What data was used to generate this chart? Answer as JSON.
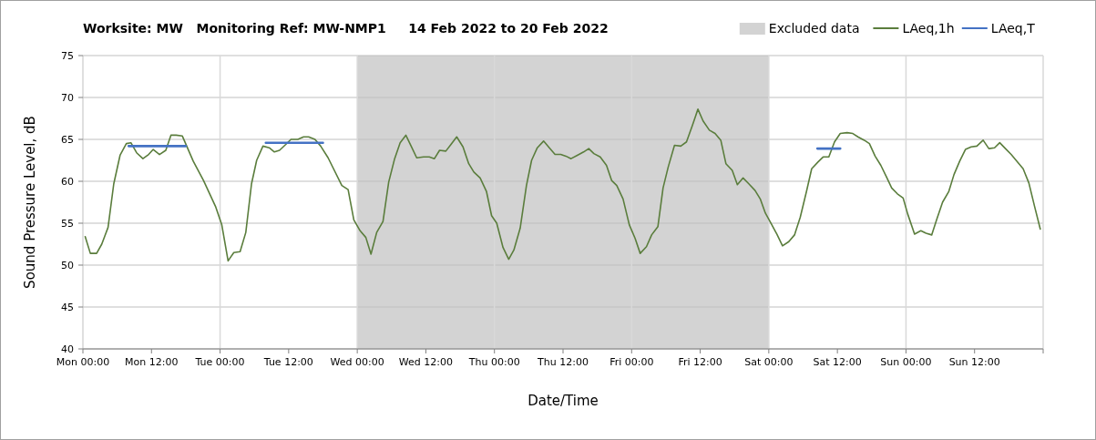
{
  "chart_data": {
    "type": "line",
    "title": "Worksite: MW   Monitoring Ref: MW-NMP1     14 Feb 2022 to 20 Feb 2022",
    "xlabel": "Date/Time",
    "ylabel": "Sound Pressure Level, dB",
    "xlim": [
      "2022-02-14T00:00",
      "2022-02-21T00:00"
    ],
    "ylim": [
      40,
      75
    ],
    "yticks": [
      40,
      45,
      50,
      55,
      60,
      65,
      70,
      75
    ],
    "xticks": [
      {
        "value": "2022-02-14T00:00",
        "label": "Mon 00:00"
      },
      {
        "value": "2022-02-14T12:00",
        "label": "Mon 12:00"
      },
      {
        "value": "2022-02-15T00:00",
        "label": "Tue 00:00"
      },
      {
        "value": "2022-02-15T12:00",
        "label": "Tue 12:00"
      },
      {
        "value": "2022-02-16T00:00",
        "label": "Wed 00:00"
      },
      {
        "value": "2022-02-16T12:00",
        "label": "Wed 12:00"
      },
      {
        "value": "2022-02-17T00:00",
        "label": "Thu 00:00"
      },
      {
        "value": "2022-02-17T12:00",
        "label": "Thu 12:00"
      },
      {
        "value": "2022-02-18T00:00",
        "label": "Fri 00:00"
      },
      {
        "value": "2022-02-18T12:00",
        "label": "Fri 12:00"
      },
      {
        "value": "2022-02-19T00:00",
        "label": "Sat 00:00"
      },
      {
        "value": "2022-02-19T12:00",
        "label": "Sat 12:00"
      },
      {
        "value": "2022-02-20T00:00",
        "label": "Sun 00:00"
      },
      {
        "value": "2022-02-20T12:00",
        "label": "Sun 12:00"
      },
      {
        "value": "2022-02-21T00:00",
        "label": null
      }
    ],
    "grid": true,
    "legend": "top right",
    "marker": "none",
    "line_style": "solid",
    "bands": [
      {
        "axis": "x",
        "from": "2022-02-16T00:00",
        "to": "2022-02-19T00:00",
        "label": "Excluded data",
        "color": "#d3d3d3"
      }
    ],
    "series": [
      {
        "name": "LAeq,1h",
        "color": "#5a7d3c",
        "x": [
          "2022-02-14T00:24",
          "2022-02-14T01:18",
          "2022-02-14T02:24",
          "2022-02-14T03:18",
          "2022-02-14T04:24",
          "2022-02-14T05:24",
          "2022-02-14T06:30",
          "2022-02-14T07:36",
          "2022-02-14T08:24",
          "2022-02-14T09:24",
          "2022-02-14T10:30",
          "2022-02-14T11:30",
          "2022-02-14T12:18",
          "2022-02-14T13:24",
          "2022-02-14T14:30",
          "2022-02-14T15:24",
          "2022-02-14T16:18",
          "2022-02-14T17:24",
          "2022-02-14T19:18",
          "2022-02-14T21:06",
          "2022-02-14T23:12",
          "2022-02-15T00:18",
          "2022-02-15T01:24",
          "2022-02-15T02:24",
          "2022-02-15T03:30",
          "2022-02-15T04:30",
          "2022-02-15T05:30",
          "2022-02-15T06:24",
          "2022-02-15T07:30",
          "2022-02-15T08:36",
          "2022-02-15T09:30",
          "2022-02-15T10:24",
          "2022-02-15T11:30",
          "2022-02-15T12:24",
          "2022-02-15T13:36",
          "2022-02-15T14:36",
          "2022-02-15T15:30",
          "2022-02-15T16:36",
          "2022-02-15T17:36",
          "2022-02-15T18:54",
          "2022-02-15T21:18",
          "2022-02-15T22:24",
          "2022-02-15T23:24",
          "2022-02-16T00:30",
          "2022-02-16T01:30",
          "2022-02-16T02:24",
          "2022-02-16T03:24",
          "2022-02-16T04:30",
          "2022-02-16T05:30",
          "2022-02-16T06:30",
          "2022-02-16T07:30",
          "2022-02-16T08:30",
          "2022-02-16T09:30",
          "2022-02-16T10:24",
          "2022-02-16T11:36",
          "2022-02-16T12:36",
          "2022-02-16T13:30",
          "2022-02-16T14:24",
          "2022-02-16T15:30",
          "2022-02-16T16:24",
          "2022-02-16T17:24",
          "2022-02-16T18:30",
          "2022-02-16T19:30",
          "2022-02-16T20:24",
          "2022-02-16T21:30",
          "2022-02-16T22:36",
          "2022-02-16T23:30",
          "2022-02-17T00:24",
          "2022-02-17T01:30",
          "2022-02-17T02:30",
          "2022-02-17T03:24",
          "2022-02-17T04:30",
          "2022-02-17T05:36",
          "2022-02-17T06:30",
          "2022-02-17T07:30",
          "2022-02-17T08:36",
          "2022-02-17T09:36",
          "2022-02-17T10:36",
          "2022-02-17T11:36",
          "2022-02-17T12:30",
          "2022-02-17T13:24",
          "2022-02-17T14:30",
          "2022-02-17T15:36",
          "2022-02-17T16:30",
          "2022-02-17T17:24",
          "2022-02-17T18:30",
          "2022-02-17T19:36",
          "2022-02-17T20:30",
          "2022-02-17T21:24",
          "2022-02-17T22:30",
          "2022-02-17T23:36",
          "2022-02-18T00:36",
          "2022-02-18T01:30",
          "2022-02-18T02:36",
          "2022-02-18T03:30",
          "2022-02-18T04:36",
          "2022-02-18T05:30",
          "2022-02-18T06:24",
          "2022-02-18T07:30",
          "2022-02-18T08:36",
          "2022-02-18T09:36",
          "2022-02-18T10:36",
          "2022-02-18T11:36",
          "2022-02-18T12:30",
          "2022-02-18T13:36",
          "2022-02-18T14:36",
          "2022-02-18T15:36",
          "2022-02-18T16:30",
          "2022-02-18T17:36",
          "2022-02-18T18:30",
          "2022-02-18T19:30",
          "2022-02-18T20:30",
          "2022-02-18T21:36",
          "2022-02-18T22:30",
          "2022-02-18T23:24",
          "2022-02-19T00:18",
          "2022-02-19T01:24",
          "2022-02-19T02:24",
          "2022-02-19T03:30",
          "2022-02-19T04:30",
          "2022-02-19T05:30",
          "2022-02-19T06:36",
          "2022-02-19T07:30",
          "2022-02-19T08:36",
          "2022-02-19T09:30",
          "2022-02-19T10:30",
          "2022-02-19T11:30",
          "2022-02-19T12:30",
          "2022-02-19T13:42",
          "2022-02-19T14:42",
          "2022-02-19T15:36",
          "2022-02-19T16:42",
          "2022-02-19T17:36",
          "2022-02-19T18:36",
          "2022-02-19T19:36",
          "2022-02-19T20:36",
          "2022-02-19T21:30",
          "2022-02-19T22:30",
          "2022-02-19T23:30",
          "2022-02-20T00:18",
          "2022-02-20T01:30",
          "2022-02-20T02:36",
          "2022-02-20T03:30",
          "2022-02-20T04:30",
          "2022-02-20T05:24",
          "2022-02-20T06:24",
          "2022-02-20T07:30",
          "2022-02-20T08:24",
          "2022-02-20T09:24",
          "2022-02-20T10:24",
          "2022-02-20T11:24",
          "2022-02-20T12:24",
          "2022-02-20T13:30",
          "2022-02-20T14:30",
          "2022-02-20T15:30",
          "2022-02-20T16:24",
          "2022-02-20T17:24",
          "2022-02-20T18:24",
          "2022-02-20T19:24",
          "2022-02-20T20:30",
          "2022-02-20T21:30",
          "2022-02-20T22:30",
          "2022-02-20T23:30"
        ],
        "values": [
          53.4,
          51.4,
          51.4,
          52.5,
          54.5,
          59.7,
          63.1,
          64.5,
          64.6,
          63.4,
          62.7,
          63.2,
          63.8,
          63.2,
          63.7,
          65.5,
          65.5,
          65.4,
          62.4,
          60.1,
          57.0,
          54.8,
          50.5,
          51.5,
          51.6,
          53.9,
          59.7,
          62.5,
          64.2,
          64.0,
          63.5,
          63.7,
          64.4,
          65.0,
          65.0,
          65.3,
          65.3,
          65.0,
          64.2,
          62.8,
          59.5,
          59.0,
          55.4,
          54.1,
          53.3,
          51.3,
          53.9,
          55.2,
          59.9,
          62.6,
          64.6,
          65.5,
          64.1,
          62.8,
          62.9,
          62.9,
          62.7,
          63.7,
          63.6,
          64.4,
          65.3,
          64.1,
          62.1,
          61.1,
          60.4,
          58.8,
          55.9,
          55.0,
          52.1,
          50.7,
          51.8,
          54.4,
          59.5,
          62.5,
          64.0,
          64.8,
          64.0,
          63.2,
          63.2,
          63.0,
          62.7,
          63.1,
          63.5,
          63.9,
          63.3,
          62.9,
          61.9,
          60.1,
          59.5,
          57.9,
          54.8,
          53.2,
          51.4,
          52.2,
          53.6,
          54.6,
          59.2,
          61.7,
          64.3,
          64.2,
          64.7,
          66.6,
          68.6,
          67.2,
          66.1,
          65.7,
          64.9,
          62.1,
          61.3,
          59.6,
          60.4,
          59.7,
          58.9,
          57.9,
          56.2,
          55.1,
          53.7,
          52.3,
          52.8,
          53.6,
          55.7,
          58.8,
          61.5,
          62.3,
          62.9,
          62.9,
          64.7,
          65.7,
          65.8,
          65.7,
          65.3,
          64.9,
          64.5,
          63.0,
          61.9,
          60.5,
          59.2,
          58.5,
          58.0,
          56.1,
          53.7,
          54.1,
          53.8,
          53.6,
          55.5,
          57.5,
          58.8,
          60.8,
          62.4,
          63.8,
          64.1,
          64.2,
          64.9,
          63.9,
          64.0,
          64.6,
          63.9,
          63.2,
          62.4,
          61.5,
          59.8,
          57.0,
          54.3
        ]
      },
      {
        "name": "LAeq,T",
        "color": "#4472c4",
        "x": [
          "2022-02-14T08:00",
          "2022-02-14T18:00",
          "2022-02-15T01:00",
          "2022-02-15T08:00",
          "2022-02-15T18:00",
          "2022-02-17T08:00",
          "2022-02-19T08:30",
          "2022-02-19T12:30"
        ],
        "values": [
          64.2,
          64.2,
          null,
          64.6,
          64.6,
          null,
          63.9,
          63.9
        ]
      }
    ]
  }
}
